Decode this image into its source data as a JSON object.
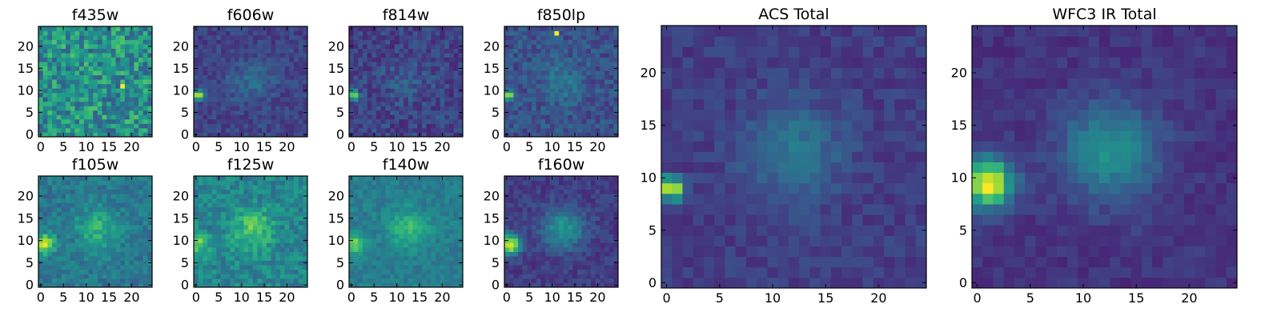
{
  "chart_data": [
    {
      "type": "heatmap",
      "title": "f435w",
      "colormap": "viridis",
      "grid": false,
      "xlim": [
        0,
        24
      ],
      "ylim": [
        0,
        24
      ],
      "xticks": [
        0,
        5,
        10,
        15,
        20
      ],
      "yticks": [
        0,
        5,
        10,
        15,
        20
      ],
      "xtick_labels": [
        "0",
        "5",
        "10",
        "15",
        "20"
      ],
      "ytick_labels": [
        "0",
        "5",
        "10",
        "15",
        "20"
      ],
      "source": {
        "type": "point",
        "x": 0.5,
        "y": 9,
        "value": 0.45
      },
      "secondary_peak": {
        "x": 18,
        "y": 11,
        "value": 1.0
      },
      "central_blob": {
        "x": 12,
        "y": 12,
        "value": 0.0
      },
      "background": 0.5,
      "noise": 0.22
    },
    {
      "type": "heatmap",
      "title": "f606w",
      "colormap": "viridis",
      "grid": false,
      "xlim": [
        0,
        24
      ],
      "ylim": [
        0,
        24
      ],
      "xticks": [
        0,
        5,
        10,
        15,
        20
      ],
      "yticks": [
        0,
        5,
        10,
        15,
        20
      ],
      "xtick_labels": [
        "0",
        "5",
        "10",
        "15",
        "20"
      ],
      "ytick_labels": [
        "0",
        "5",
        "10",
        "15",
        "20"
      ],
      "source": {
        "type": "point",
        "x": 0.5,
        "y": 9,
        "value": 0.95
      },
      "central_blob": {
        "x": 12,
        "y": 12,
        "value": 0.15
      },
      "background": 0.2,
      "noise": 0.08
    },
    {
      "type": "heatmap",
      "title": "f814w",
      "colormap": "viridis",
      "grid": false,
      "xlim": [
        0,
        24
      ],
      "ylim": [
        0,
        24
      ],
      "xticks": [
        0,
        5,
        10,
        15,
        20
      ],
      "yticks": [
        0,
        5,
        10,
        15,
        20
      ],
      "xtick_labels": [
        "0",
        "5",
        "10",
        "15",
        "20"
      ],
      "ytick_labels": [
        "0",
        "5",
        "10",
        "15",
        "20"
      ],
      "source": {
        "type": "point",
        "x": 0.5,
        "y": 9,
        "value": 0.95
      },
      "central_blob": {
        "x": 12,
        "y": 12,
        "value": 0.1
      },
      "background": 0.2,
      "noise": 0.1
    },
    {
      "type": "heatmap",
      "title": "f850lp",
      "colormap": "viridis",
      "grid": false,
      "xlim": [
        0,
        24
      ],
      "ylim": [
        0,
        24
      ],
      "xticks": [
        0,
        5,
        10,
        15,
        20
      ],
      "yticks": [
        0,
        5,
        10,
        15,
        20
      ],
      "xtick_labels": [
        "0",
        "5",
        "10",
        "15",
        "20"
      ],
      "ytick_labels": [
        "0",
        "5",
        "10",
        "15",
        "20"
      ],
      "source": {
        "type": "point",
        "x": 0.5,
        "y": 9,
        "value": 0.85
      },
      "secondary_peak": {
        "x": 11,
        "y": 23,
        "value": 1.0
      },
      "central_blob": {
        "x": 12,
        "y": 12,
        "value": 0.15
      },
      "background": 0.25,
      "noise": 0.1
    },
    {
      "type": "heatmap",
      "title": "f105w",
      "colormap": "viridis",
      "grid": false,
      "xlim": [
        0,
        24
      ],
      "ylim": [
        0,
        24
      ],
      "xticks": [
        0,
        5,
        10,
        15,
        20
      ],
      "yticks": [
        0,
        5,
        10,
        15,
        20
      ],
      "xtick_labels": [
        "0",
        "5",
        "10",
        "15",
        "20"
      ],
      "ytick_labels": [
        "0",
        "5",
        "10",
        "15",
        "20"
      ],
      "source": {
        "type": "extended",
        "x": 0.8,
        "y": 9.2,
        "value": 0.9
      },
      "central_blob": {
        "x": 12.5,
        "y": 12.5,
        "value": 0.25
      },
      "background": 0.4,
      "noise": 0.1
    },
    {
      "type": "heatmap",
      "title": "f125w",
      "colormap": "viridis",
      "grid": false,
      "xlim": [
        0,
        24
      ],
      "ylim": [
        0,
        24
      ],
      "xticks": [
        0,
        5,
        10,
        15,
        20
      ],
      "yticks": [
        0,
        5,
        10,
        15,
        20
      ],
      "xtick_labels": [
        "0",
        "5",
        "10",
        "15",
        "20"
      ],
      "ytick_labels": [
        "0",
        "5",
        "10",
        "15",
        "20"
      ],
      "source": {
        "type": "extended",
        "x": 0.8,
        "y": 9.2,
        "value": 0.75
      },
      "central_blob": {
        "x": 12.5,
        "y": 12.5,
        "value": 0.3
      },
      "background": 0.45,
      "noise": 0.12
    },
    {
      "type": "heatmap",
      "title": "f140w",
      "colormap": "viridis",
      "grid": false,
      "xlim": [
        0,
        24
      ],
      "ylim": [
        0,
        24
      ],
      "xticks": [
        0,
        5,
        10,
        15,
        20
      ],
      "yticks": [
        0,
        5,
        10,
        15,
        20
      ],
      "xtick_labels": [
        "0",
        "5",
        "10",
        "15",
        "20"
      ],
      "ytick_labels": [
        "0",
        "5",
        "10",
        "15",
        "20"
      ],
      "source": {
        "type": "extended",
        "x": 0.8,
        "y": 9.2,
        "value": 0.8
      },
      "central_blob": {
        "x": 12.5,
        "y": 12.5,
        "value": 0.25
      },
      "background": 0.42,
      "noise": 0.07
    },
    {
      "type": "heatmap",
      "title": "f160w",
      "colormap": "viridis",
      "grid": false,
      "xlim": [
        0,
        24
      ],
      "ylim": [
        0,
        24
      ],
      "xticks": [
        0,
        5,
        10,
        15,
        20
      ],
      "yticks": [
        0,
        5,
        10,
        15,
        20
      ],
      "xtick_labels": [
        "0",
        "5",
        "10",
        "15",
        "20"
      ],
      "ytick_labels": [
        "0",
        "5",
        "10",
        "15",
        "20"
      ],
      "source": {
        "type": "extended",
        "x": 0.8,
        "y": 9.2,
        "value": 0.95
      },
      "central_blob": {
        "x": 12.5,
        "y": 12.5,
        "value": 0.35
      },
      "background": 0.18,
      "noise": 0.07
    },
    {
      "type": "heatmap",
      "title": "ACS Total",
      "colormap": "viridis",
      "grid": false,
      "xlim": [
        0,
        24
      ],
      "ylim": [
        0,
        24
      ],
      "xticks": [
        0,
        5,
        10,
        15,
        20
      ],
      "yticks": [
        0,
        5,
        10,
        15,
        20
      ],
      "xtick_labels": [
        "0",
        "5",
        "10",
        "15",
        "20"
      ],
      "ytick_labels": [
        "0",
        "5",
        "10",
        "15",
        "20"
      ],
      "source": {
        "type": "point",
        "x": 0.5,
        "y": 9,
        "value": 1.0
      },
      "central_blob": {
        "x": 12,
        "y": 12.5,
        "value": 0.22
      },
      "background": 0.18,
      "noise": 0.06
    },
    {
      "type": "heatmap",
      "title": "WFC3 IR Total",
      "colormap": "viridis",
      "grid": false,
      "xlim": [
        0,
        24
      ],
      "ylim": [
        0,
        24
      ],
      "xticks": [
        0,
        5,
        10,
        15,
        20
      ],
      "yticks": [
        0,
        5,
        10,
        15,
        20
      ],
      "xtick_labels": [
        "0",
        "5",
        "10",
        "15",
        "20"
      ],
      "ytick_labels": [
        "0",
        "5",
        "10",
        "15",
        "20"
      ],
      "source": {
        "type": "extended",
        "x": 1,
        "y": 9.5,
        "value": 1.0
      },
      "central_blob": {
        "x": 12.5,
        "y": 12.5,
        "value": 0.35
      },
      "background": 0.15,
      "noise": 0.05
    }
  ]
}
